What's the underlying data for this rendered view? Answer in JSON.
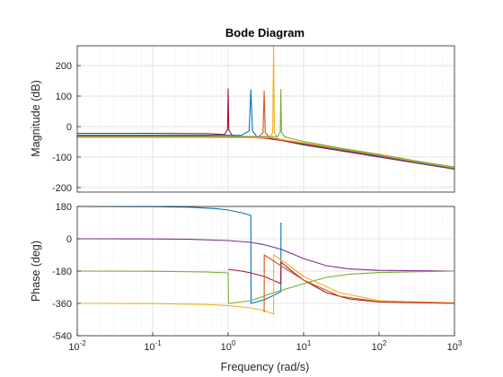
{
  "chart_data": [
    {
      "type": "line",
      "title": "Bode Diagram",
      "ylabel": "Magnitude (dB)",
      "xscale": "log",
      "xlim": [
        0.01,
        1000
      ],
      "ylim": [
        -215,
        265
      ],
      "grid": true,
      "yticks": [
        200,
        100,
        0,
        -100,
        -200
      ],
      "series": [
        {
          "color": "#7e2f8e",
          "x": [
            0.01,
            0.1,
            0.5,
            0.9,
            1.5,
            3,
            5,
            10,
            30,
            100,
            300,
            1000
          ],
          "y": [
            -30,
            -30,
            -31,
            -32,
            -33,
            -37,
            -45,
            -60,
            -79,
            -100,
            -119,
            -140
          ]
        },
        {
          "color": "#a2142f",
          "x": [
            0.01,
            0.1,
            0.5,
            0.9,
            0.98,
            1.0,
            1.02,
            1.15,
            1.6,
            3,
            5,
            10,
            30,
            100,
            300,
            1000
          ],
          "y": [
            -22,
            -22,
            -23,
            -26,
            -10,
            124,
            -10,
            -33,
            -35,
            -38,
            -45,
            -59,
            -78,
            -99,
            -118,
            -139
          ]
        },
        {
          "color": "#0072bd",
          "x": [
            0.01,
            0.1,
            0.5,
            1.5,
            1.9,
            2.0,
            2.1,
            2.4,
            3.5,
            5,
            10,
            30,
            100,
            300,
            1000
          ],
          "y": [
            -28,
            -28,
            -28,
            -29,
            -14,
            120,
            -14,
            -33,
            -37,
            -42,
            -57,
            -76,
            -97,
            -117,
            -138
          ]
        },
        {
          "color": "#d95319",
          "x": [
            0.01,
            0.1,
            0.5,
            2.5,
            2.9,
            3.0,
            3.1,
            3.6,
            5,
            10,
            30,
            100,
            300,
            1000
          ],
          "y": [
            -34,
            -34,
            -34,
            -35,
            -20,
            116,
            -20,
            -38,
            -44,
            -55,
            -74,
            -95,
            -115,
            -136
          ]
        },
        {
          "color": "#edb120",
          "x": [
            0.01,
            0.1,
            0.5,
            3.5,
            3.9,
            4.0,
            4.1,
            4.6,
            6,
            10,
            30,
            100,
            300,
            1000
          ],
          "y": [
            -36,
            -36,
            -36,
            -37,
            -20,
            265,
            -20,
            -40,
            -45,
            -53,
            -72,
            -93,
            -114,
            -135
          ]
        },
        {
          "color": "#77ac30",
          "x": [
            0.01,
            0.1,
            0.5,
            4.5,
            4.9,
            5.0,
            5.1,
            5.6,
            7,
            10,
            30,
            100,
            300,
            1000
          ],
          "y": [
            -32,
            -32,
            -32,
            -33,
            -18,
            122,
            -18,
            -33,
            -40,
            -49,
            -70,
            -91,
            -112,
            -133
          ]
        }
      ]
    },
    {
      "type": "line",
      "xlabel": "Frequency  (rad/s)",
      "ylabel": "Phase (deg)",
      "xscale": "log",
      "xlim": [
        0.01,
        1000
      ],
      "ylim": [
        -540,
        180
      ],
      "grid": true,
      "xticks": [
        0.01,
        0.1,
        1,
        10,
        100,
        1000
      ],
      "yticks": [
        180,
        0,
        -180,
        -360,
        -540
      ],
      "series": [
        {
          "color": "#7e2f8e",
          "x": [
            0.01,
            0.1,
            0.3,
            1,
            2,
            3,
            5,
            7,
            10,
            20,
            40,
            100,
            1000
          ],
          "y": [
            0,
            -1,
            -3,
            -10,
            -20,
            -33,
            -58,
            -83,
            -110,
            -150,
            -168,
            -176,
            -180
          ]
        },
        {
          "color": "#0072bd",
          "x": [
            0.01,
            0.1,
            0.3,
            0.7,
            1,
            1.5,
            2,
            2.01,
            3,
            4,
            5,
            5.01
          ],
          "y": [
            180,
            179,
            176,
            168,
            160,
            145,
            130,
            -360,
            -340,
            -315,
            -295,
            90
          ]
        },
        {
          "color": "#77ac30",
          "x": [
            0.01,
            0.1,
            0.5,
            1,
            1.01,
            2,
            4,
            7,
            10,
            20,
            40,
            100,
            1000
          ],
          "y": [
            -180,
            -181,
            -185,
            -190,
            -360,
            -345,
            -300,
            -270,
            -250,
            -215,
            -198,
            -188,
            -180
          ]
        },
        {
          "color": "#a2142f",
          "x": [
            1,
            1.5,
            2,
            3,
            5,
            5.01,
            7,
            10,
            20,
            40,
            100,
            1000
          ],
          "y": [
            -170,
            -180,
            -190,
            -210,
            -250,
            -130,
            -180,
            -230,
            -300,
            -335,
            -352,
            -360
          ]
        },
        {
          "color": "#edb120",
          "x": [
            0.01,
            0.1,
            0.5,
            1,
            2,
            3,
            4,
            4.01,
            6,
            10,
            30,
            100,
            1000
          ],
          "y": [
            -360,
            -361,
            -366,
            -372,
            -385,
            -400,
            -420,
            -90,
            -140,
            -210,
            -300,
            -345,
            -358
          ]
        },
        {
          "color": "#d95319",
          "x": [
            3,
            3.01,
            5,
            10,
            30,
            100,
            1000
          ],
          "y": [
            -410,
            -90,
            -150,
            -230,
            -320,
            -350,
            -358
          ]
        }
      ]
    }
  ]
}
